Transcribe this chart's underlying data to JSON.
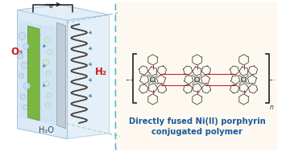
{
  "bg_color": "#ffffff",
  "box_bg": "#fdf9f0",
  "box_border_color": "#5ab8ca",
  "label_text": "Directly fused Ni(II) porphyrin\nconjugated polymer",
  "label_fontsize": 7.2,
  "label_color": "#1a5a9a",
  "electron_label": "e⁻",
  "h2_label": "H₂",
  "h2_color": "#cc1a1a",
  "o2_label": "O₂",
  "o2_color": "#cc1a1a",
  "h2o_label": "H₂O",
  "h2o_color": "#404040",
  "green_plate_color": "#7cb642",
  "gray_plate_color": "#b8c8d8",
  "spring_color": "#404040",
  "bubble_color_o2": "#c8dff5",
  "bubble_color_h2": "#d8ecd8",
  "arrow_color": "#202020",
  "dashed_line_color": "#6ab0c0",
  "cell_face_color": "#d8eaf8",
  "cell_edge_color": "#90b8d0",
  "red_bond_color": "#cc2020",
  "struct_line_color": "#303030",
  "ni_color": "#808080",
  "bracket_color": "#303030"
}
